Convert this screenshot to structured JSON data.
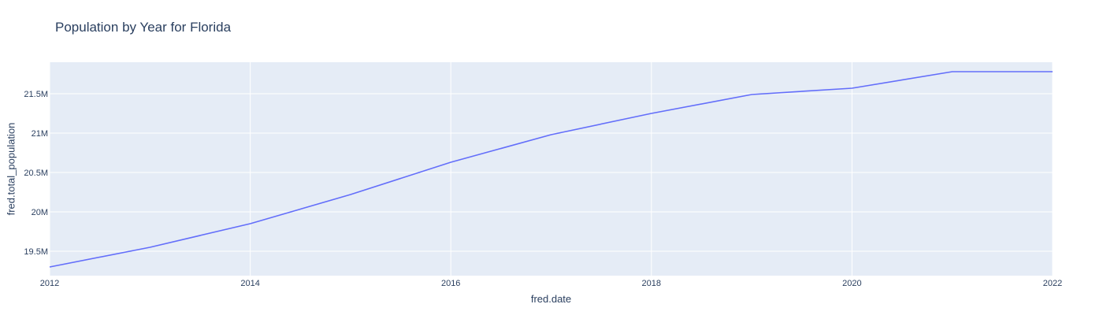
{
  "chart_data": {
    "type": "line",
    "title": "Population by Year for Florida",
    "xlabel": "fred.date",
    "ylabel": "fred.total_population",
    "x": [
      2012,
      2013,
      2014,
      2015,
      2016,
      2017,
      2018,
      2019,
      2020,
      2021,
      2022
    ],
    "series": [
      {
        "values": [
          19300000,
          19550000,
          19850000,
          20220000,
          20630000,
          20980000,
          21250000,
          21490000,
          21570000,
          21780000,
          21780000
        ]
      }
    ],
    "xlim": [
      2012,
      2022
    ],
    "ylim": [
      19190000,
      21900000
    ],
    "x_ticks": [
      2012,
      2014,
      2016,
      2018,
      2020,
      2022
    ],
    "x_tick_labels": [
      "2012",
      "2014",
      "2016",
      "2018",
      "2020",
      "2022"
    ],
    "y_ticks": [
      19500000,
      20000000,
      20500000,
      21000000,
      21500000
    ],
    "y_tick_labels": [
      "19.5M",
      "20M",
      "20.5M",
      "21M",
      "21.5M"
    ],
    "grid": true,
    "legend": "none",
    "colors": {
      "plot_bg": "#e5ecf6",
      "grid": "#ffffff",
      "line": "#636efa",
      "text": "#2a3f5f"
    }
  }
}
